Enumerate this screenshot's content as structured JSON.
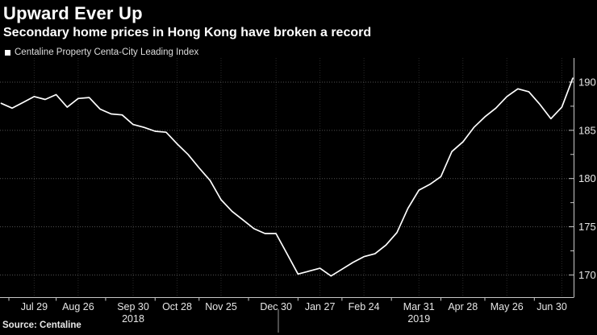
{
  "header": {
    "title": "Upward Ever Up",
    "subtitle": "Secondary home prices in Hong Kong have broken a record"
  },
  "legend": {
    "label": "Centaline Property Centa-City Leading Index"
  },
  "source": {
    "text": "Source: Centaline"
  },
  "colors": {
    "background": "#000000",
    "line": "#ffffff",
    "axis": "#c8c8c8",
    "grid_h": "rgba(255,255,255,0.32)",
    "grid_v": "rgba(255,255,255,0.16)",
    "tick_text": "#e6e6e6",
    "year_divider": "#9a9a9a"
  },
  "chart_data": {
    "type": "line",
    "title": "Upward Ever Up",
    "subtitle": "Secondary home prices in Hong Kong have broken a record",
    "series_name": "Centaline Property Centa-City Leading Index",
    "frequency": "weekly",
    "dates": [
      "2018-07-08",
      "2018-07-15",
      "2018-07-22",
      "2018-07-29",
      "2018-08-05",
      "2018-08-12",
      "2018-08-19",
      "2018-08-26",
      "2018-09-02",
      "2018-09-09",
      "2018-09-16",
      "2018-09-23",
      "2018-09-30",
      "2018-10-07",
      "2018-10-14",
      "2018-10-21",
      "2018-10-28",
      "2018-11-04",
      "2018-11-11",
      "2018-11-18",
      "2018-11-25",
      "2018-12-02",
      "2018-12-09",
      "2018-12-16",
      "2018-12-23",
      "2018-12-30",
      "2019-01-06",
      "2019-01-13",
      "2019-01-20",
      "2019-01-27",
      "2019-02-03",
      "2019-02-10",
      "2019-02-17",
      "2019-02-24",
      "2019-03-03",
      "2019-03-10",
      "2019-03-17",
      "2019-03-24",
      "2019-03-31",
      "2019-04-07",
      "2019-04-14",
      "2019-04-21",
      "2019-04-28",
      "2019-05-05",
      "2019-05-12",
      "2019-05-19",
      "2019-05-26",
      "2019-06-02",
      "2019-06-09",
      "2019-06-16",
      "2019-06-23",
      "2019-06-30",
      "2019-07-07"
    ],
    "values": [
      187.8,
      187.3,
      187.9,
      188.5,
      188.2,
      188.7,
      187.4,
      188.3,
      188.4,
      187.2,
      186.7,
      186.6,
      185.6,
      185.3,
      184.9,
      184.8,
      183.6,
      182.5,
      181.1,
      179.8,
      177.8,
      176.6,
      175.7,
      174.8,
      174.3,
      174.3,
      172.2,
      170.1,
      170.4,
      170.7,
      169.9,
      170.6,
      171.3,
      171.9,
      172.2,
      173.1,
      174.4,
      176.9,
      178.8,
      179.4,
      180.2,
      182.8,
      183.8,
      185.3,
      186.4,
      187.3,
      188.5,
      189.3,
      189.0,
      187.7,
      186.2,
      187.4,
      190.4
    ],
    "x_tick_labels": [
      "Jul 29",
      "Aug 26",
      "Sep 30",
      "Oct 28",
      "Nov 25",
      "Dec 30",
      "Jan 27",
      "Feb 24",
      "Mar 31",
      "Apr 28",
      "May 26",
      "Jun 30"
    ],
    "x_tick_indices": [
      3,
      7,
      12,
      16,
      20,
      25,
      29,
      33,
      38,
      42,
      46,
      51
    ],
    "year_labels": [
      {
        "text": "2018",
        "anchor_index": 12
      },
      {
        "text": "2019",
        "anchor_index": 38
      }
    ],
    "y_ticks": [
      170,
      175,
      180,
      185,
      190
    ],
    "y_minor_ticks": [
      172.5,
      177.5,
      182.5,
      187.5
    ],
    "ylim": [
      167.7,
      192.5
    ],
    "grid": true,
    "legend_position": "top-left",
    "y_axis_side": "right"
  }
}
